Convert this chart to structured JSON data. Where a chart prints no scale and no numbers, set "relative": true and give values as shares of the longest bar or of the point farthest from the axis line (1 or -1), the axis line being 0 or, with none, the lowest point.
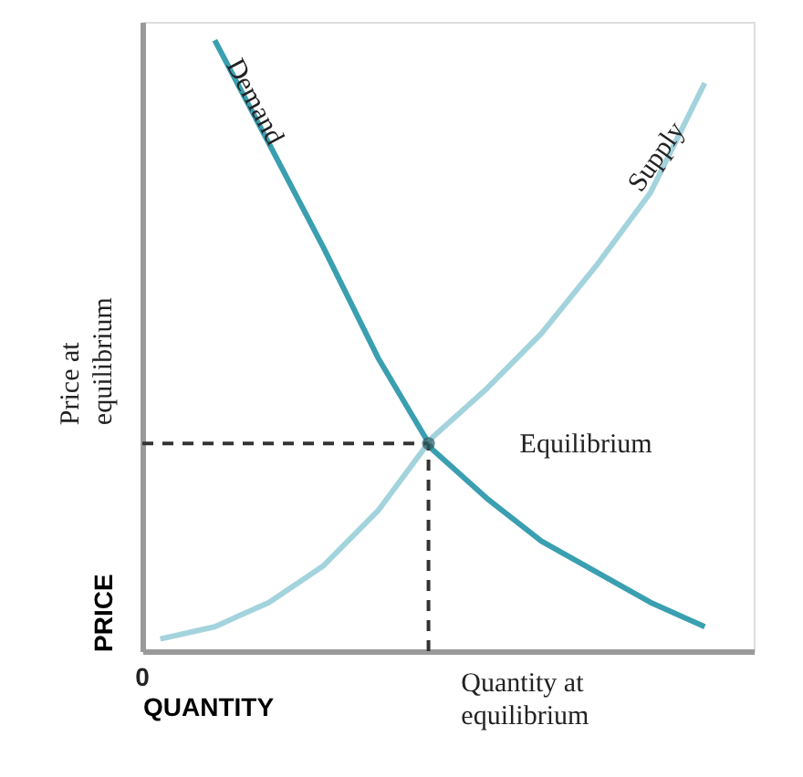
{
  "chart_data": {
    "type": "line",
    "relative": true,
    "xlabel": "QUANTITY",
    "ylabel": "PRICE",
    "categories": [
      null,
      null,
      null,
      null,
      null,
      null,
      null,
      null,
      null,
      null,
      null
    ],
    "series": [
      {
        "name": "Demand",
        "color": "#3a9fb0",
        "values": [
          null,
          1.0,
          0.83,
          0.66,
          0.48,
          0.33,
          0.25,
          0.18,
          0.13,
          0.08,
          0.04
        ]
      },
      {
        "name": "Supply",
        "color": "#a3d3dc",
        "values": [
          0.02,
          0.04,
          0.08,
          0.14,
          0.23,
          0.35,
          0.43,
          0.52,
          0.63,
          0.75,
          0.93
        ]
      }
    ],
    "ref_lines": [
      {
        "axis": "y",
        "value": 0.34,
        "label": "Price at equilibrium",
        "line_style": "dashed",
        "color": "#333333"
      }
    ],
    "annotations": [
      "Equilibrium",
      "0",
      "Quantity at equilibrium"
    ],
    "marker": "none",
    "line_style": "solid"
  }
}
